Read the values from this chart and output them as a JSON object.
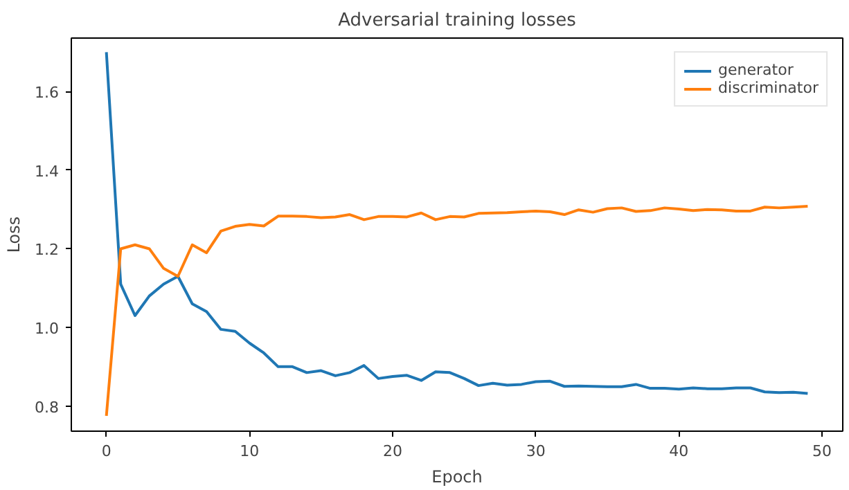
{
  "chart_data": {
    "type": "line",
    "title": "Adversarial training losses",
    "xlabel": "Epoch",
    "ylabel": "Loss",
    "x": [
      0,
      1,
      2,
      3,
      4,
      5,
      6,
      7,
      8,
      9,
      10,
      11,
      12,
      13,
      14,
      15,
      16,
      17,
      18,
      19,
      20,
      21,
      22,
      23,
      24,
      25,
      26,
      27,
      28,
      29,
      30,
      31,
      32,
      33,
      34,
      35,
      36,
      37,
      38,
      39,
      40,
      41,
      42,
      43,
      44,
      45,
      46,
      47,
      48,
      49
    ],
    "series": [
      {
        "name": "generator",
        "color": "#1f77b4",
        "values": [
          1.7,
          1.11,
          1.03,
          1.08,
          1.11,
          1.13,
          1.06,
          1.04,
          0.995,
          0.99,
          0.96,
          0.935,
          0.9,
          0.9,
          0.885,
          0.89,
          0.877,
          0.885,
          0.903,
          0.87,
          0.875,
          0.878,
          0.865,
          0.887,
          0.885,
          0.87,
          0.852,
          0.858,
          0.853,
          0.855,
          0.862,
          0.863,
          0.85,
          0.851,
          0.85,
          0.849,
          0.849,
          0.855,
          0.845,
          0.845,
          0.843,
          0.846,
          0.844,
          0.844,
          0.846,
          0.846,
          0.836,
          0.834,
          0.835,
          0.832
        ]
      },
      {
        "name": "discriminator",
        "color": "#ff7f0e",
        "values": [
          0.775,
          1.2,
          1.21,
          1.2,
          1.15,
          1.13,
          1.21,
          1.19,
          1.245,
          1.257,
          1.262,
          1.258,
          1.283,
          1.283,
          1.282,
          1.279,
          1.281,
          1.287,
          1.274,
          1.282,
          1.282,
          1.281,
          1.291,
          1.274,
          1.282,
          1.281,
          1.29,
          1.291,
          1.292,
          1.294,
          1.296,
          1.294,
          1.287,
          1.299,
          1.293,
          1.302,
          1.304,
          1.295,
          1.297,
          1.304,
          1.301,
          1.297,
          1.3,
          1.299,
          1.296,
          1.296,
          1.306,
          1.304,
          1.306,
          1.308
        ]
      }
    ],
    "xlim": [
      -2.45,
      51.45
    ],
    "ylim": [
      0.736,
      1.736
    ],
    "xticks": [
      0,
      10,
      20,
      30,
      40,
      50
    ],
    "yticks": [
      0.8,
      {
        "value": 1,
        "label": "1.0"
      },
      1.2,
      1.4,
      1.6
    ],
    "grid": false,
    "legend": "top right",
    "line_style": "solid"
  }
}
